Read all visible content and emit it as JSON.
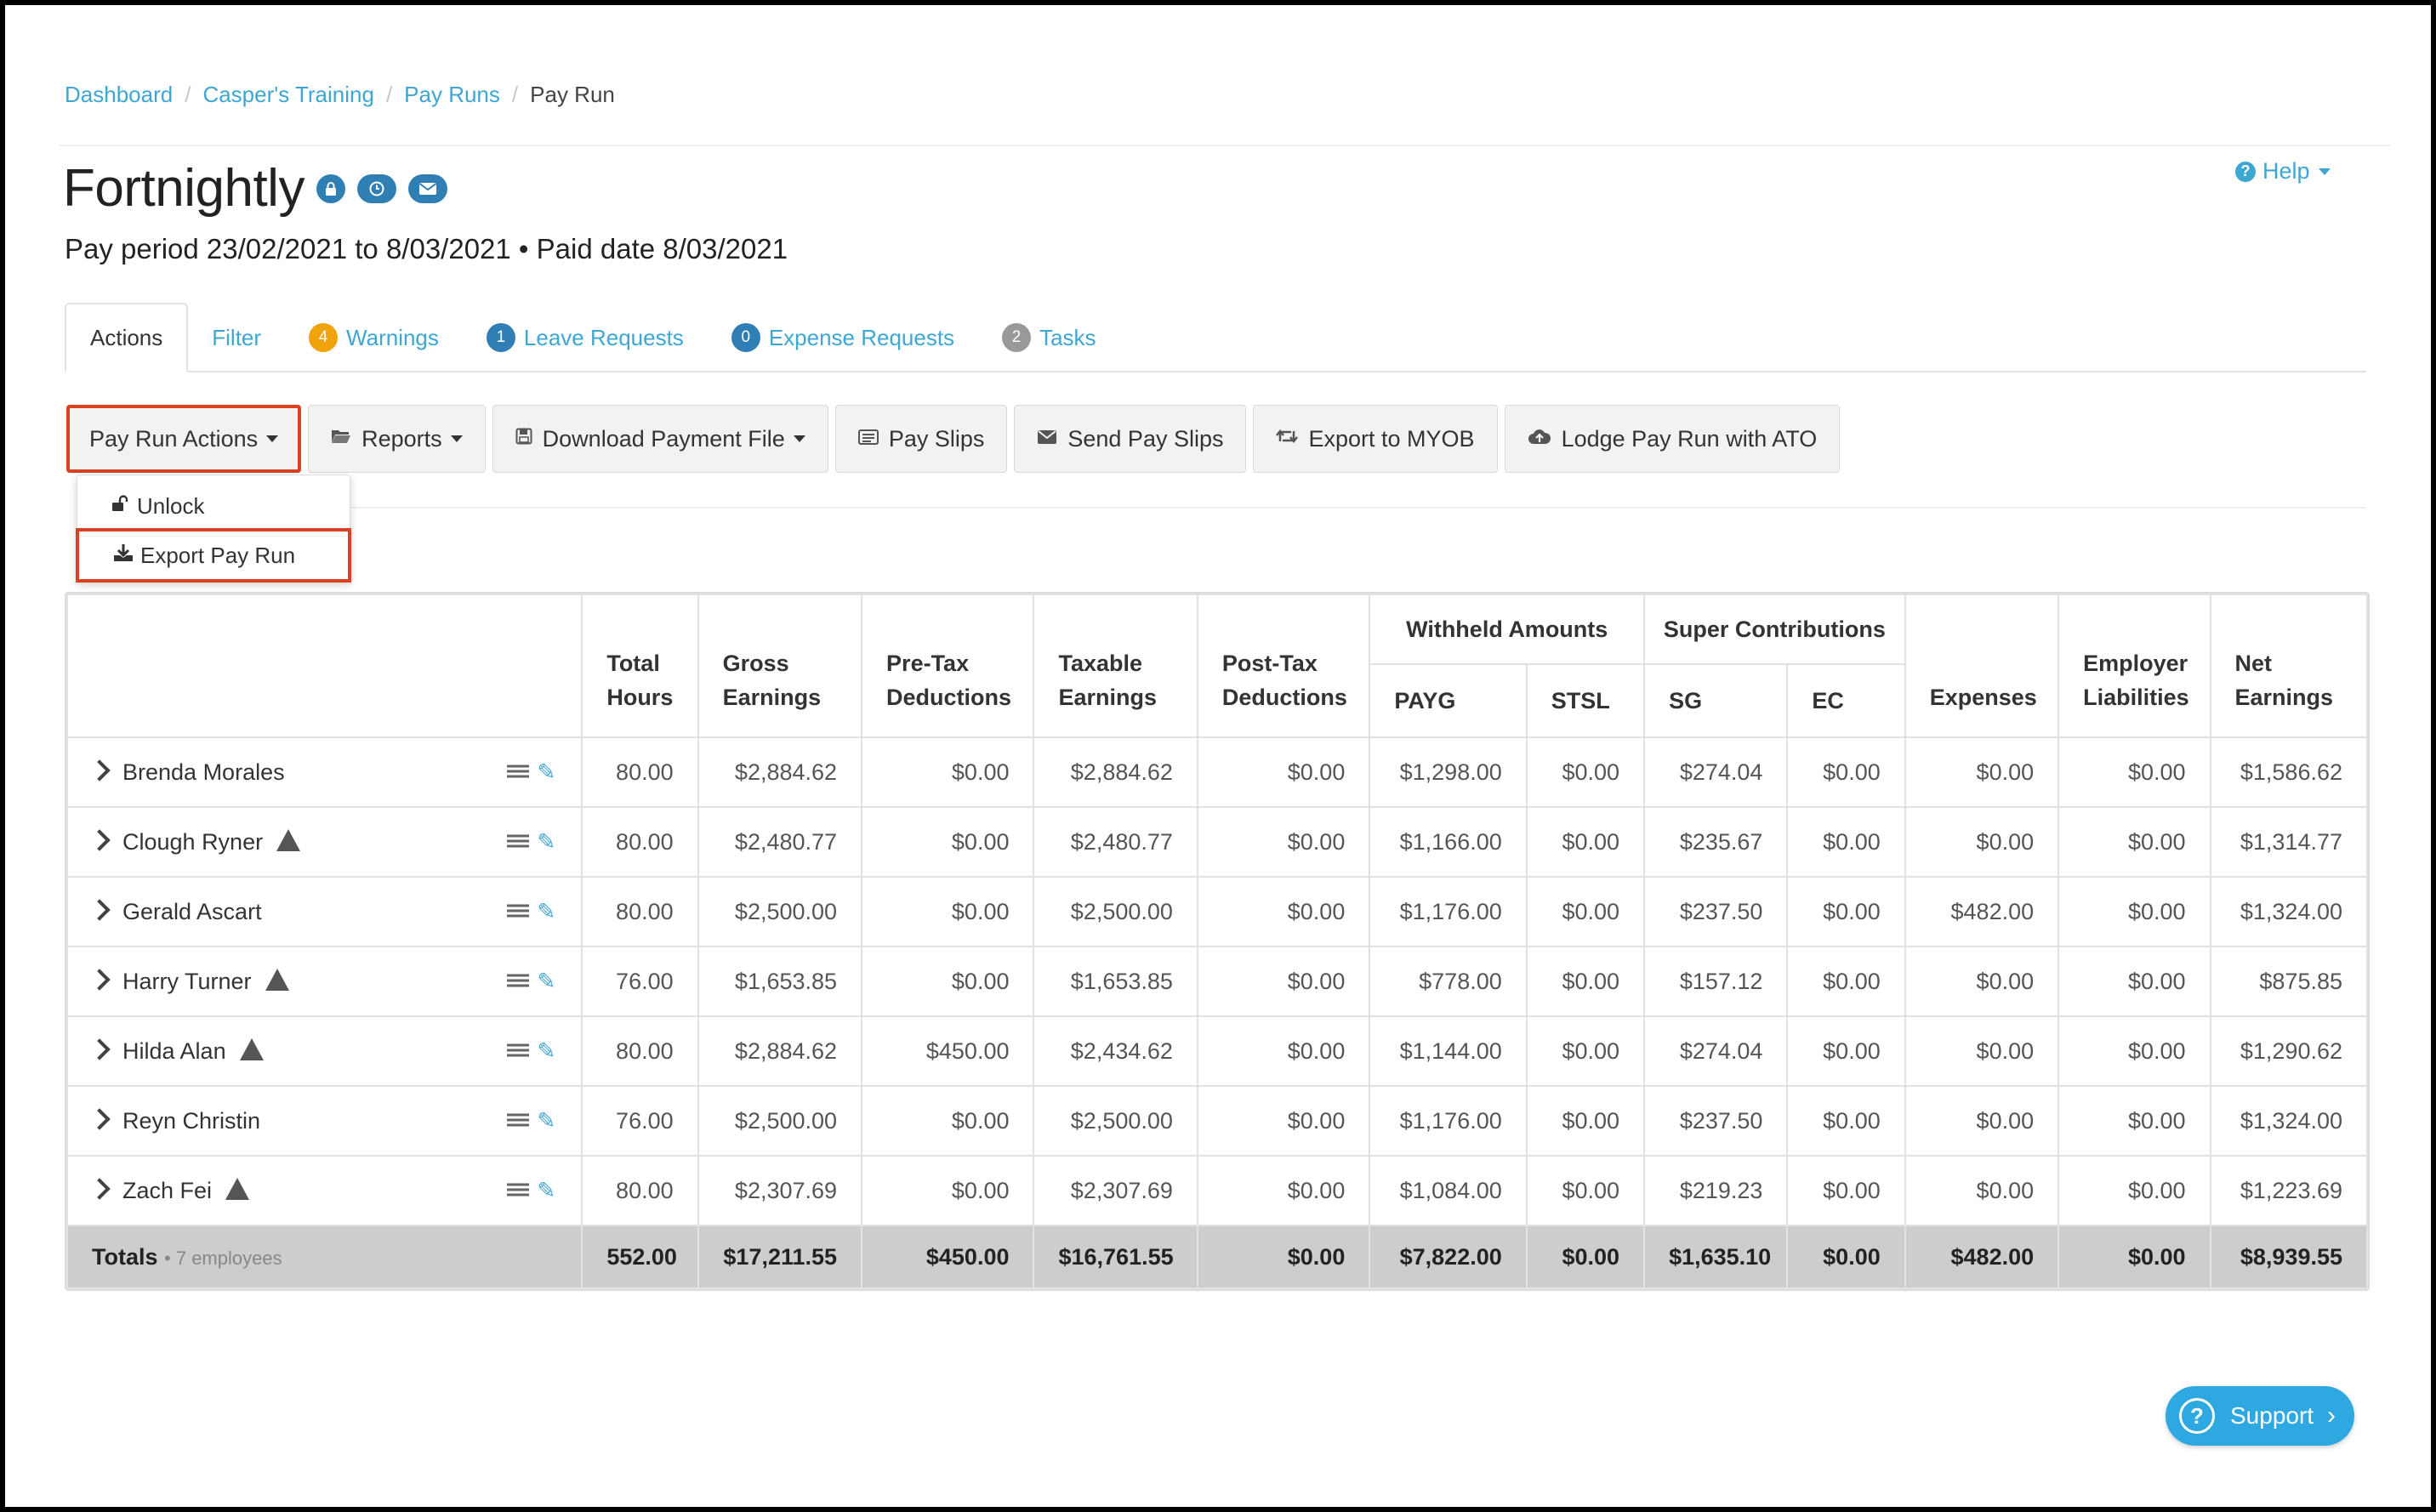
{
  "breadcrumb": [
    "Dashboard",
    "Casper's Training",
    "Pay Runs",
    "Pay Run"
  ],
  "page": {
    "title": "Fortnightly",
    "subtitle": "Pay period 23/02/2021 to 8/03/2021 • Paid date 8/03/2021",
    "help": "Help"
  },
  "tabs": [
    {
      "label": "Actions",
      "badge": ""
    },
    {
      "label": "Filter",
      "badge": ""
    },
    {
      "label": "Warnings",
      "badge": "4"
    },
    {
      "label": "Leave Requests",
      "badge": "1"
    },
    {
      "label": "Expense Requests",
      "badge": "0"
    },
    {
      "label": "Tasks",
      "badge": "2"
    }
  ],
  "toolbar": {
    "pay_run_actions": "Pay Run Actions",
    "reports": "Reports",
    "download_payment_file": "Download Payment File",
    "pay_slips": "Pay Slips",
    "send_pay_slips": "Send Pay Slips",
    "export_myob": "Export to MYOB",
    "lodge_ato": "Lodge Pay Run with ATO"
  },
  "dropdown": {
    "unlock": "Unlock",
    "export_pay_run": "Export Pay Run"
  },
  "table": {
    "headers": {
      "total_hours": [
        "Total",
        "Hours"
      ],
      "gross": [
        "Gross",
        "Earnings"
      ],
      "pretax": [
        "Pre-Tax",
        "Deductions"
      ],
      "taxable": [
        "Taxable",
        "Earnings"
      ],
      "posttax": [
        "Post-Tax",
        "Deductions"
      ],
      "withheld": "Withheld Amounts",
      "payg": "PAYG",
      "stsl": "STSL",
      "super": "Super Contributions",
      "sg": "SG",
      "ec": "EC",
      "expenses": "Expenses",
      "employer": [
        "Employer",
        "Liabilities"
      ],
      "net": [
        "Net",
        "Earnings"
      ]
    },
    "rows": [
      {
        "name": "Brenda Morales",
        "warn": false,
        "vals": [
          "80.00",
          "$2,884.62",
          "$0.00",
          "$2,884.62",
          "$0.00",
          "$1,298.00",
          "$0.00",
          "$274.04",
          "$0.00",
          "$0.00",
          "$0.00",
          "$1,586.62"
        ]
      },
      {
        "name": "Clough Ryner",
        "warn": true,
        "vals": [
          "80.00",
          "$2,480.77",
          "$0.00",
          "$2,480.77",
          "$0.00",
          "$1,166.00",
          "$0.00",
          "$235.67",
          "$0.00",
          "$0.00",
          "$0.00",
          "$1,314.77"
        ]
      },
      {
        "name": "Gerald Ascart",
        "warn": false,
        "vals": [
          "80.00",
          "$2,500.00",
          "$0.00",
          "$2,500.00",
          "$0.00",
          "$1,176.00",
          "$0.00",
          "$237.50",
          "$0.00",
          "$482.00",
          "$0.00",
          "$1,324.00"
        ]
      },
      {
        "name": "Harry Turner",
        "warn": true,
        "vals": [
          "76.00",
          "$1,653.85",
          "$0.00",
          "$1,653.85",
          "$0.00",
          "$778.00",
          "$0.00",
          "$157.12",
          "$0.00",
          "$0.00",
          "$0.00",
          "$875.85"
        ]
      },
      {
        "name": "Hilda Alan",
        "warn": true,
        "vals": [
          "80.00",
          "$2,884.62",
          "$450.00",
          "$2,434.62",
          "$0.00",
          "$1,144.00",
          "$0.00",
          "$274.04",
          "$0.00",
          "$0.00",
          "$0.00",
          "$1,290.62"
        ]
      },
      {
        "name": "Reyn Christin",
        "warn": false,
        "vals": [
          "76.00",
          "$2,500.00",
          "$0.00",
          "$2,500.00",
          "$0.00",
          "$1,176.00",
          "$0.00",
          "$237.50",
          "$0.00",
          "$0.00",
          "$0.00",
          "$1,324.00"
        ]
      },
      {
        "name": "Zach Fei",
        "warn": true,
        "vals": [
          "80.00",
          "$2,307.69",
          "$0.00",
          "$2,307.69",
          "$0.00",
          "$1,084.00",
          "$0.00",
          "$219.23",
          "$0.00",
          "$0.00",
          "$0.00",
          "$1,223.69"
        ]
      }
    ],
    "totals": {
      "label": "Totals",
      "sub": "• 7 employees",
      "vals": [
        "552.00",
        "$17,211.55",
        "$450.00",
        "$16,761.55",
        "$0.00",
        "$7,822.00",
        "$0.00",
        "$1,635.10",
        "$0.00",
        "$482.00",
        "$0.00",
        "$8,939.55"
      ]
    }
  },
  "support": "Support",
  "colors": {
    "accent": "#3ea6d3",
    "highlight": "#d9411f",
    "warning_badge": "#f0a30a",
    "info_badge": "#2f7fb5"
  }
}
